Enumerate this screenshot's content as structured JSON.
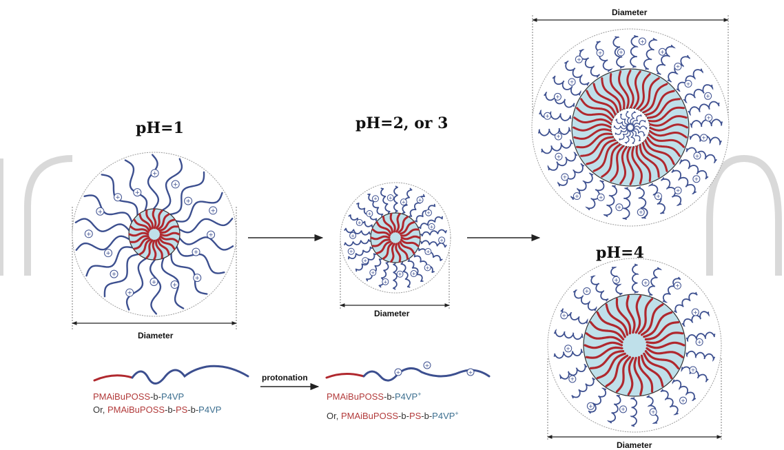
{
  "labels": {
    "ph1": "pH=1",
    "ph23": "pH=2, or 3",
    "ph4": "pH=4",
    "diameter": "Diameter",
    "protonation": "protonation"
  },
  "legend_left": {
    "line1": [
      {
        "text": "PMAiBuPOSS",
        "color": "#b23a3a"
      },
      {
        "text": "-b-",
        "color": "#333333"
      },
      {
        "text": "P4VP",
        "color": "#3b6e8f"
      }
    ],
    "line2": [
      {
        "text": "Or, ",
        "color": "#333333"
      },
      {
        "text": "PMAiBuPOSS",
        "color": "#b23a3a"
      },
      {
        "text": "-b-",
        "color": "#333333"
      },
      {
        "text": "PS",
        "color": "#b23a3a"
      },
      {
        "text": "-b-",
        "color": "#333333"
      },
      {
        "text": "P4VP",
        "color": "#3b6e8f"
      }
    ]
  },
  "legend_right": {
    "line1": [
      {
        "text": "PMAiBuPOSS",
        "color": "#b23a3a"
      },
      {
        "text": "-b-",
        "color": "#333333"
      },
      {
        "text": "P4VP",
        "color": "#3b6e8f"
      },
      {
        "text": "+",
        "color": "#3b6e8f",
        "sup": true
      }
    ],
    "line2": [
      {
        "text": "Or, ",
        "color": "#333333"
      },
      {
        "text": "PMAiBuPOSS",
        "color": "#b23a3a"
      },
      {
        "text": "-b-",
        "color": "#333333"
      },
      {
        "text": "PS",
        "color": "#b23a3a"
      },
      {
        "text": "-b-",
        "color": "#333333"
      },
      {
        "text": "P4VP",
        "color": "#3b6e8f"
      },
      {
        "text": "+",
        "color": "#3b6e8f",
        "sup": true
      }
    ]
  },
  "colors": {
    "core_red": "#b0282e",
    "corona_blue": "#3c4f8f",
    "core_fill": "#bfe0ea",
    "outline": "#9a9a9a",
    "watermark": "#d7d7d7"
  }
}
